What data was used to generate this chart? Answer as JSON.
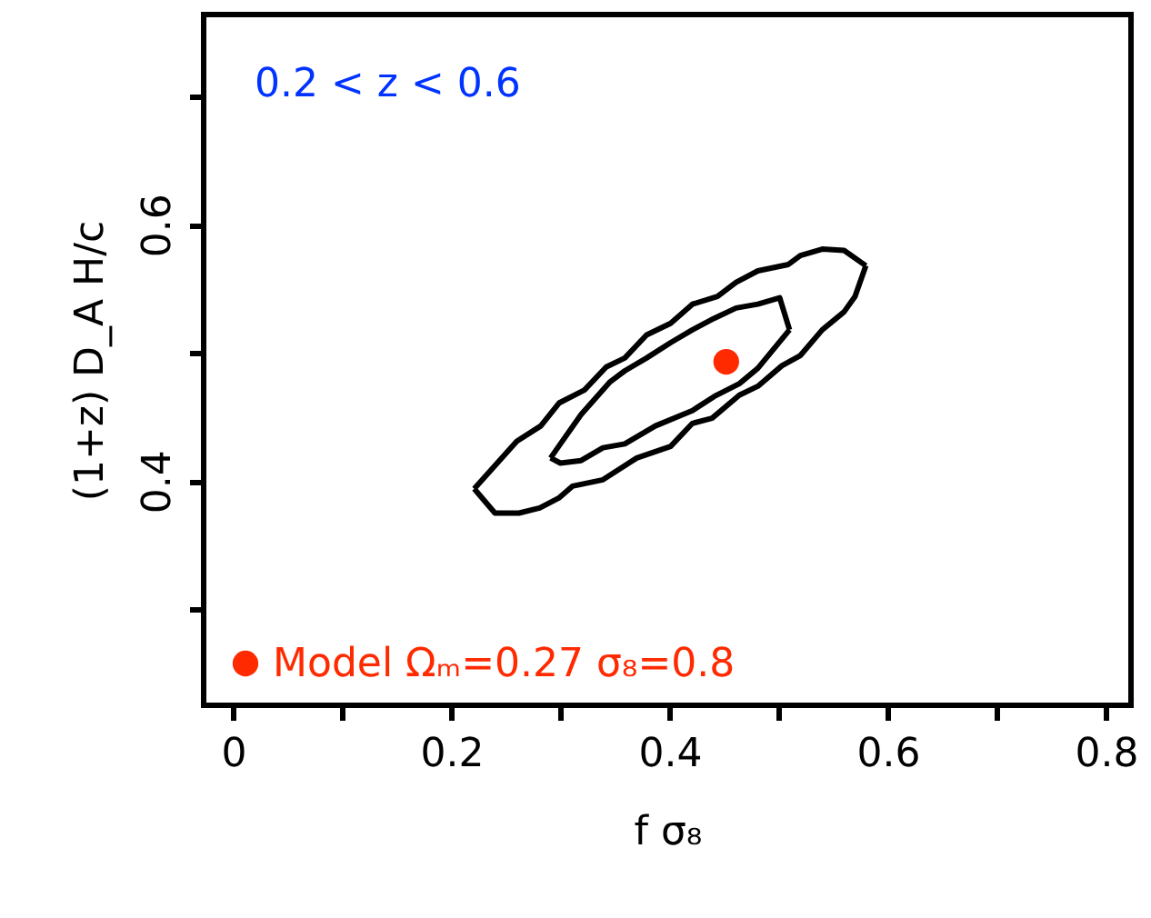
{
  "chart_data": {
    "type": "line",
    "xlabel": "f σ₈",
    "ylabel": "(1+z) D_A H/c",
    "annotations": [
      "0.2 < z < 0.6"
    ],
    "xlim": [
      -0.027,
      0.823
    ],
    "ylim": [
      0.225,
      0.764
    ],
    "xticks": [
      0,
      {
        "value": 0.1,
        "label": null
      },
      0.2,
      {
        "value": 0.3,
        "label": null
      },
      0.4,
      {
        "value": 0.5,
        "label": null
      },
      0.6,
      {
        "value": 0.7,
        "label": null
      },
      0.8
    ],
    "yticks": [
      {
        "value": 0.3,
        "label": null
      },
      0.4,
      {
        "value": 0.5,
        "label": null
      },
      0.6,
      {
        "value": 0.7,
        "label": null
      }
    ],
    "grid": false,
    "legend": "bottom left",
    "line_style": "solid",
    "series": [
      {
        "color": "#000000",
        "x": [
          0.221,
          0.24,
          0.262,
          0.281,
          0.299,
          0.311,
          0.339,
          0.37,
          0.401,
          0.421,
          0.439,
          0.464,
          0.481,
          0.503,
          0.52,
          0.54,
          0.56,
          0.57,
          0.58
        ],
        "values": [
          0.394,
          0.375,
          0.375,
          0.379,
          0.387,
          0.396,
          0.401,
          0.418,
          0.427,
          0.445,
          0.449,
          0.467,
          0.474,
          0.49,
          0.498,
          0.518,
          0.532,
          0.544,
          0.568
        ]
      },
      {
        "color": "#000000",
        "x": [
          0.58,
          0.56,
          0.54,
          0.52,
          0.509,
          0.481,
          0.461,
          0.444,
          0.421,
          0.401,
          0.379,
          0.359,
          0.342,
          0.322,
          0.299,
          0.282,
          0.26,
          0.221
        ],
        "values": [
          0.568,
          0.58,
          0.581,
          0.576,
          0.569,
          0.564,
          0.555,
          0.544,
          0.538,
          0.523,
          0.514,
          0.496,
          0.489,
          0.471,
          0.461,
          0.443,
          0.431,
          0.394
        ]
      },
      {
        "color": "#000000",
        "x": [
          0.291,
          0.3,
          0.319,
          0.339,
          0.359,
          0.387,
          0.421,
          0.441,
          0.464,
          0.481,
          0.51
        ],
        "values": [
          0.418,
          0.414,
          0.416,
          0.426,
          0.429,
          0.443,
          0.455,
          0.466,
          0.476,
          0.488,
          0.518
        ]
      },
      {
        "color": "#000000",
        "x": [
          0.51,
          0.501,
          0.481,
          0.461,
          0.441,
          0.421,
          0.401,
          0.379,
          0.359,
          0.345,
          0.319,
          0.3,
          0.291
        ],
        "values": [
          0.518,
          0.543,
          0.538,
          0.535,
          0.527,
          0.518,
          0.508,
          0.496,
          0.486,
          0.477,
          0.452,
          0.429,
          0.418
        ]
      },
      {
        "type": "scatter",
        "name": "Model Ωₘ=0.27 σ₈=0.8",
        "color": "#ff2a00",
        "marker": "circle",
        "x": [
          0.452
        ],
        "values": [
          0.493
        ]
      }
    ]
  }
}
